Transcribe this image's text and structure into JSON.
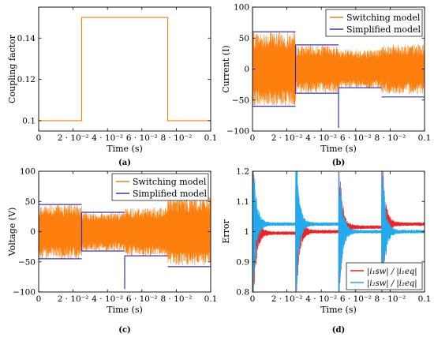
{
  "chart_data": [
    {
      "panel": "(a)",
      "type": "line",
      "xlabel": "Time (s)",
      "ylabel": "Coupling factor",
      "xlim": [
        0,
        0.1
      ],
      "ylim": [
        0.095,
        0.155
      ],
      "xticks": [
        "0",
        "2 · 10⁻²",
        "4 · 10⁻²",
        "6 · 10⁻²",
        "8 · 10⁻²",
        "0.1"
      ],
      "yticks": [
        "0.1",
        "0.12",
        "0.14"
      ],
      "ytick_values": [
        0.1,
        0.12,
        0.14
      ],
      "series": [
        {
          "color": "#ff7f0e",
          "x": [
            0,
            0.025,
            0.025,
            0.075,
            0.075,
            0.1
          ],
          "y": [
            0.1,
            0.1,
            0.15,
            0.15,
            0.1,
            0.1
          ]
        }
      ]
    },
    {
      "panel": "(b)",
      "type": "line",
      "xlabel": "Time (s)",
      "ylabel": "Current (I)",
      "xlim": [
        0,
        0.1
      ],
      "ylim": [
        -100,
        100
      ],
      "xticks": [
        "0",
        "2 · 10⁻²",
        "4 · 10⁻²",
        "6 · 10⁻²",
        "8 · 10⁻²",
        "0.1"
      ],
      "yticks": [
        "100",
        "50",
        "0",
        "−50",
        "−100"
      ],
      "ytick_values": [
        100,
        50,
        0,
        -50,
        -100
      ],
      "legend": {
        "position": "top-right"
      },
      "series": [
        {
          "name": "Switching model",
          "color": "#ff7f0e",
          "kind": "switching",
          "segments": [
            {
              "t0": 0,
              "t1": 0.025,
              "amp": 60
            },
            {
              "t0": 0.025,
              "t1": 0.05,
              "amp": 38
            },
            {
              "t0": 0.05,
              "t1": 0.075,
              "amp": 32
            },
            {
              "t0": 0.075,
              "t1": 0.1,
              "amp": 40
            }
          ]
        },
        {
          "name": "Simplified model",
          "color": "#3333cc",
          "kind": "envelope",
          "segments": [
            {
              "t0": 0,
              "t1": 0.025,
              "hi": 60,
              "lo": -60
            },
            {
              "t0": 0.025,
              "t1": 0.05,
              "hi": 39,
              "lo": -39
            },
            {
              "t0": 0.05,
              "t1": 0.075,
              "hi": -30,
              "lo": -30
            },
            {
              "t0": 0.075,
              "t1": 0.1,
              "hi": -45,
              "lo": -45
            }
          ]
        }
      ]
    },
    {
      "panel": "(c)",
      "type": "line",
      "xlabel": "Time (s)",
      "ylabel": "Voltage (V)",
      "xlim": [
        0,
        0.1
      ],
      "ylim": [
        -100,
        100
      ],
      "xticks": [
        "0",
        "2 · 10⁻²",
        "4 · 10⁻²",
        "6 · 10⁻²",
        "8 · 10⁻²",
        "0.1"
      ],
      "yticks": [
        "100",
        "50",
        "0",
        "−50",
        "−100"
      ],
      "ytick_values": [
        100,
        50,
        0,
        -50,
        -100
      ],
      "legend": {
        "position": "top-right"
      },
      "series": [
        {
          "name": "Switching model",
          "color": "#ff7f0e",
          "kind": "switching",
          "segments": [
            {
              "t0": 0,
              "t1": 0.025,
              "amp": 45
            },
            {
              "t0": 0.025,
              "t1": 0.05,
              "amp": 32
            },
            {
              "t0": 0.05,
              "t1": 0.075,
              "amp": 40
            },
            {
              "t0": 0.075,
              "t1": 0.1,
              "amp": 58
            }
          ]
        },
        {
          "name": "Simplified model",
          "color": "#3333cc",
          "kind": "envelope",
          "segments": [
            {
              "t0": 0,
              "t1": 0.025,
              "hi": 45,
              "lo": -45
            },
            {
              "t0": 0.025,
              "t1": 0.05,
              "hi": 32,
              "lo": -32
            },
            {
              "t0": 0.05,
              "t1": 0.075,
              "hi": -40,
              "lo": -40
            },
            {
              "t0": 0.075,
              "t1": 0.1,
              "hi": -58,
              "lo": -58
            }
          ]
        }
      ]
    },
    {
      "panel": "(d)",
      "type": "line",
      "xlabel": "Time (s)",
      "ylabel": "Error",
      "xlim": [
        0,
        0.1
      ],
      "ylim": [
        0.8,
        1.2
      ],
      "xticks": [
        "0",
        "2 · 10⁻²",
        "4 · 10⁻²",
        "6 · 10⁻²",
        "8 · 10⁻²",
        "0.1"
      ],
      "yticks": [
        "1.2",
        "1.1",
        "1",
        "0.9",
        "0.8"
      ],
      "ytick_values": [
        1.2,
        1.1,
        1.0,
        0.9,
        0.8
      ],
      "legend": {
        "position": "bottom-right"
      },
      "series": [
        {
          "name": "|i₁sw| / |i₁eq|",
          "color": "#ee2222",
          "kind": "error",
          "segments": [
            {
              "t0": 0,
              "t1": 0.025,
              "level": 0.995
            },
            {
              "t0": 0.025,
              "t1": 0.05,
              "level": 1.0
            },
            {
              "t0": 0.05,
              "t1": 0.075,
              "level": 1.015
            },
            {
              "t0": 0.075,
              "t1": 0.1,
              "level": 1.025
            }
          ]
        },
        {
          "name": "|i₂sw| / |i₂eq|",
          "color": "#22aaee",
          "kind": "error",
          "segments": [
            {
              "t0": 0,
              "t1": 0.025,
              "level": 1.025
            },
            {
              "t0": 0.025,
              "t1": 0.05,
              "level": 1.025
            },
            {
              "t0": 0.05,
              "t1": 0.075,
              "level": 1.0
            },
            {
              "t0": 0.075,
              "t1": 0.1,
              "level": 1.0
            }
          ]
        }
      ]
    }
  ]
}
